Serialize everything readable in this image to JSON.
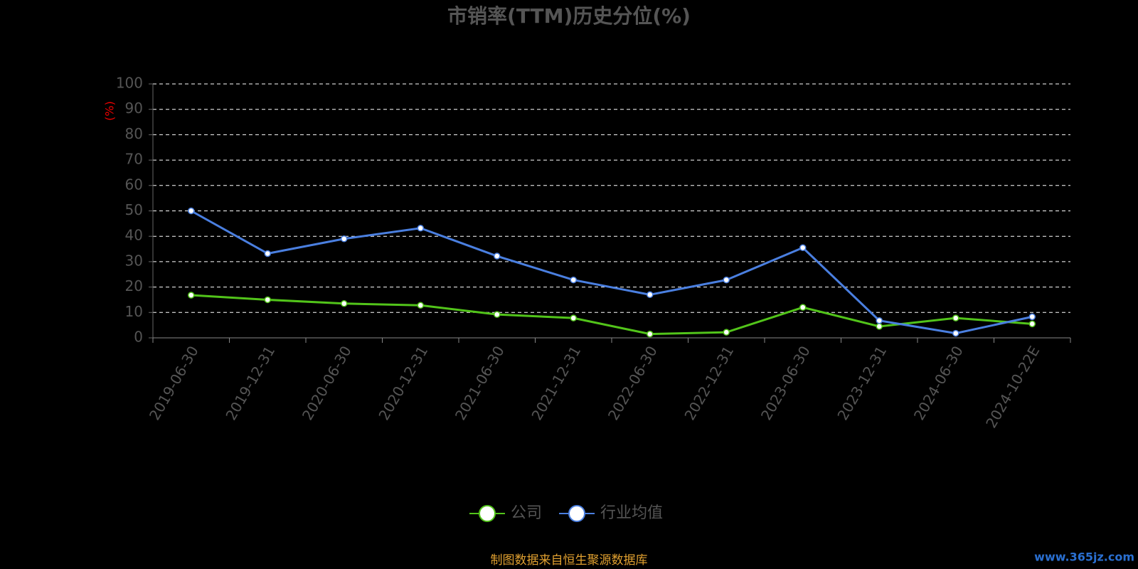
{
  "chart_data": {
    "type": "line",
    "title": "市销率(TTM)历史分位(%)",
    "y_label": "(%)",
    "categories": [
      "2019-06-30",
      "2019-12-31",
      "2020-06-30",
      "2020-12-31",
      "2021-06-30",
      "2021-12-31",
      "2022-06-30",
      "2022-12-31",
      "2023-06-30",
      "2023-12-31",
      "2024-06-30",
      "2024-10-22E"
    ],
    "series": [
      {
        "name": "公司",
        "color": "#52c41a",
        "values": [
          16.8,
          15,
          13.5,
          12.8,
          9.2,
          7.8,
          1.5,
          2.2,
          12,
          4.5,
          7.8,
          5.5
        ]
      },
      {
        "name": "行业均值",
        "color": "#4a7fe0",
        "values": [
          50,
          33.2,
          39,
          43.2,
          32.2,
          22.8,
          17,
          22.8,
          35.5,
          6.8,
          1.8,
          8.3
        ]
      }
    ],
    "ylim": [
      0,
      100
    ],
    "yticks": [
      0,
      10,
      20,
      30,
      40,
      50,
      60,
      70,
      80,
      90,
      100
    ],
    "grid": true,
    "source": "制图数据来自恒生聚源数据库",
    "watermark": "www.365jz.com"
  }
}
